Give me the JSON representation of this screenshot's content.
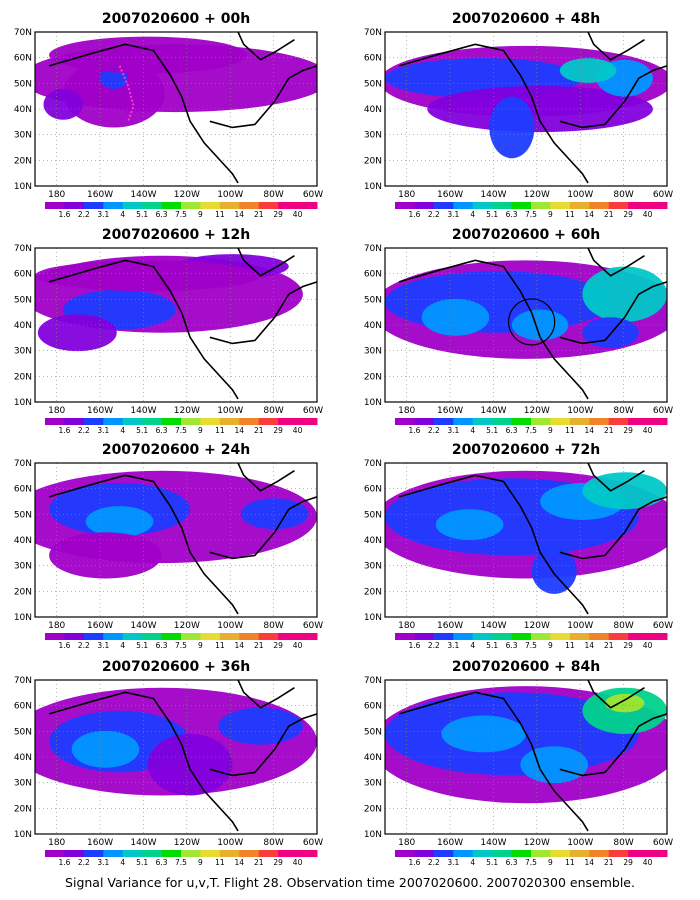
{
  "figure": {
    "caption": "Signal Variance for u,v,T. Flight 28. Observation time 2007020600. 2007020300 ensemble."
  },
  "colorbar": {
    "labels": [
      "1.6",
      "2.2",
      "3.1",
      "4",
      "5.1",
      "6.3",
      "7.5",
      "9",
      "11",
      "14",
      "21",
      "29",
      "40"
    ],
    "colors": [
      "#a000c8",
      "#8200dc",
      "#1e3cff",
      "#0096ff",
      "#00c8c8",
      "#00d28c",
      "#00dc00",
      "#a0e632",
      "#e6dc32",
      "#e6af2d",
      "#f08228",
      "#fa3c3c",
      "#f00082"
    ]
  },
  "chart_data": [
    {
      "type": "heatmap",
      "title": "2007020600 + 00h",
      "x_ticks": [
        "180",
        "160W",
        "140W",
        "120W",
        "100W",
        "80W",
        "60W"
      ],
      "y_ticks": [
        "10N",
        "20N",
        "30N",
        "40N",
        "50N",
        "60N",
        "70N"
      ],
      "xlim": [
        -190,
        -60
      ],
      "ylim": [
        10,
        70
      ],
      "grid": true
    },
    {
      "type": "heatmap",
      "title": "2007020600 + 48h",
      "x_ticks": [
        "180",
        "160W",
        "140W",
        "120W",
        "100W",
        "80W",
        "60W"
      ],
      "y_ticks": [
        "10N",
        "20N",
        "30N",
        "40N",
        "50N",
        "60N",
        "70N"
      ],
      "xlim": [
        -190,
        -60
      ],
      "ylim": [
        10,
        70
      ],
      "grid": true
    },
    {
      "type": "heatmap",
      "title": "2007020600 + 12h",
      "x_ticks": [
        "180",
        "160W",
        "140W",
        "120W",
        "100W",
        "80W",
        "60W"
      ],
      "y_ticks": [
        "10N",
        "20N",
        "30N",
        "40N",
        "50N",
        "60N",
        "70N"
      ],
      "xlim": [
        -190,
        -60
      ],
      "ylim": [
        10,
        70
      ],
      "grid": true
    },
    {
      "type": "heatmap",
      "title": "2007020600 + 60h",
      "x_ticks": [
        "180",
        "160W",
        "140W",
        "120W",
        "100W",
        "80W",
        "60W"
      ],
      "y_ticks": [
        "10N",
        "20N",
        "30N",
        "40N",
        "50N",
        "60N",
        "70N"
      ],
      "xlim": [
        -190,
        -60
      ],
      "ylim": [
        10,
        70
      ],
      "grid": true
    },
    {
      "type": "heatmap",
      "title": "2007020600 + 24h",
      "x_ticks": [
        "180",
        "160W",
        "140W",
        "120W",
        "100W",
        "80W",
        "60W"
      ],
      "y_ticks": [
        "10N",
        "20N",
        "30N",
        "40N",
        "50N",
        "60N",
        "70N"
      ],
      "xlim": [
        -190,
        -60
      ],
      "ylim": [
        10,
        70
      ],
      "grid": true
    },
    {
      "type": "heatmap",
      "title": "2007020600 + 72h",
      "x_ticks": [
        "180",
        "160W",
        "140W",
        "120W",
        "100W",
        "80W",
        "60W"
      ],
      "y_ticks": [
        "10N",
        "20N",
        "30N",
        "40N",
        "50N",
        "60N",
        "70N"
      ],
      "xlim": [
        -190,
        -60
      ],
      "ylim": [
        10,
        70
      ],
      "grid": true
    },
    {
      "type": "heatmap",
      "title": "2007020600 + 36h",
      "x_ticks": [
        "180",
        "160W",
        "140W",
        "120W",
        "100W",
        "80W",
        "60W"
      ],
      "y_ticks": [
        "10N",
        "20N",
        "30N",
        "40N",
        "50N",
        "60N",
        "70N"
      ],
      "xlim": [
        -190,
        -60
      ],
      "ylim": [
        10,
        70
      ],
      "grid": true
    },
    {
      "type": "heatmap",
      "title": "2007020600 + 84h",
      "x_ticks": [
        "180",
        "160W",
        "140W",
        "120W",
        "100W",
        "80W",
        "60W"
      ],
      "y_ticks": [
        "10N",
        "20N",
        "30N",
        "40N",
        "50N",
        "60N",
        "70N"
      ],
      "xlim": [
        -190,
        -60
      ],
      "ylim": [
        10,
        70
      ],
      "grid": true
    }
  ]
}
